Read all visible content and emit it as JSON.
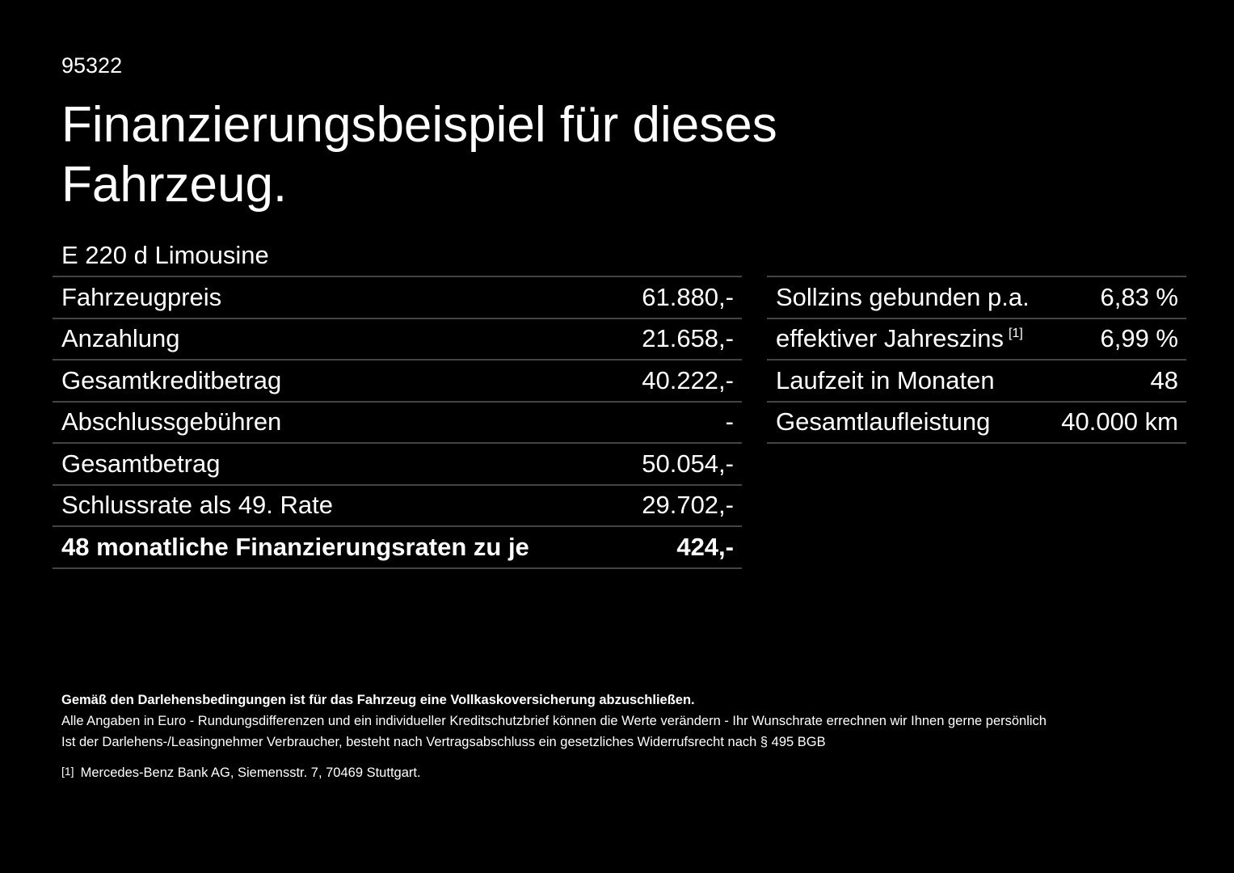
{
  "code": "95322",
  "title": "Finanzierungsbeispiel für dieses Fahrzeug.",
  "model": "E 220 d Limousine",
  "left_rows": [
    {
      "label": "Fahrzeugpreis",
      "value": "61.880,-"
    },
    {
      "label": "Anzahlung",
      "value": "21.658,-"
    },
    {
      "label": "Gesamtkreditbetrag",
      "value": "40.222,-"
    },
    {
      "label": "Abschlussgebühren",
      "value": "-"
    },
    {
      "label": "Gesamtbetrag",
      "value": "50.054,-"
    },
    {
      "label": "Schlussrate als 49. Rate",
      "value": "29.702,-"
    },
    {
      "label": "48 monatliche Finanzierungsraten zu je",
      "value": "424,-"
    }
  ],
  "right_rows": [
    {
      "label": "Sollzins gebunden p.a.",
      "value": "6,83 %"
    },
    {
      "label": "effektiver Jahreszins",
      "sup": "[1]",
      "value": "6,99 %"
    },
    {
      "label": "Laufzeit in Monaten",
      "value": "48"
    },
    {
      "label": "Gesamtlaufleistung",
      "value": "40.000 km"
    }
  ],
  "notes": {
    "bold": "Gemäß den Darlehensbedingungen ist für das Fahrzeug eine Vollkaskoversicherung abzuschließen.",
    "line1": "Alle Angaben in Euro - Rundungsdifferenzen und ein individueller Kreditschutzbrief können die Werte verändern - Ihr Wunschrate errechnen wir Ihnen gerne persönlich",
    "line2": "Ist der Darlehens-/Leasingnehmer Verbraucher, besteht nach Vertragsabschluss ein gesetzliches Widerrufsrecht nach § 495 BGB",
    "footnote_marker": "[1]",
    "footnote": "Mercedes-Benz Bank AG, Siemensstr. 7, 70469 Stuttgart."
  }
}
